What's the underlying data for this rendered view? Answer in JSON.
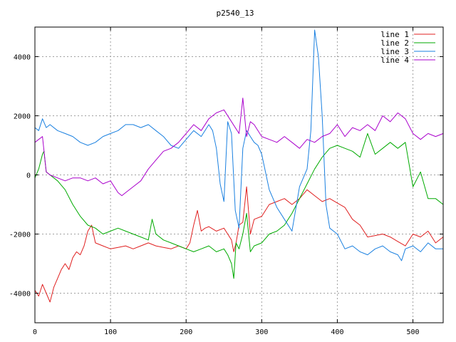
{
  "chart_data": {
    "type": "line",
    "title": "p2540_13",
    "xlabel": "",
    "ylabel": "",
    "xlim": [
      0,
      540
    ],
    "ylim": [
      -5000,
      5000
    ],
    "x_ticks": [
      0,
      100,
      200,
      300,
      400,
      500
    ],
    "y_ticks": [
      -4000,
      -2000,
      0,
      2000,
      4000
    ],
    "grid": true,
    "legend_position": "top-right",
    "series": [
      {
        "name": "line 1",
        "color": "#e02020",
        "x": [
          0,
          5,
          10,
          15,
          20,
          25,
          30,
          35,
          40,
          45,
          50,
          55,
          60,
          65,
          70,
          75,
          80,
          90,
          100,
          110,
          120,
          130,
          140,
          150,
          160,
          170,
          180,
          190,
          200,
          205,
          210,
          215,
          220,
          225,
          230,
          240,
          250,
          255,
          260,
          263,
          266,
          270,
          275,
          280,
          285,
          290,
          300,
          310,
          320,
          330,
          340,
          350,
          360,
          370,
          380,
          390,
          400,
          410,
          420,
          430,
          440,
          450,
          460,
          470,
          480,
          490,
          500,
          510,
          520,
          530,
          540
        ],
        "y": [
          -3900,
          -4100,
          -3700,
          -4000,
          -4300,
          -3800,
          -3500,
          -3200,
          -3000,
          -3200,
          -2800,
          -2600,
          -2700,
          -2400,
          -1900,
          -1700,
          -2300,
          -2400,
          -2500,
          -2450,
          -2400,
          -2500,
          -2400,
          -2300,
          -2400,
          -2450,
          -2500,
          -2400,
          -2500,
          -2300,
          -1700,
          -1200,
          -1900,
          -1800,
          -1750,
          -1900,
          -1800,
          -2000,
          -2200,
          -2600,
          -2300,
          -1700,
          -1600,
          -400,
          -2000,
          -1500,
          -1400,
          -1000,
          -900,
          -800,
          -1000,
          -800,
          -500,
          -700,
          -900,
          -800,
          -950,
          -1100,
          -1500,
          -1700,
          -2100,
          -2050,
          -2000,
          -2100,
          -2250,
          -2400,
          -2000,
          -2100,
          -1900,
          -2300,
          -2100
        ]
      },
      {
        "name": "line 2",
        "color": "#00aa00",
        "x": [
          0,
          5,
          10,
          12,
          15,
          20,
          30,
          40,
          50,
          60,
          70,
          80,
          90,
          100,
          110,
          120,
          130,
          140,
          150,
          155,
          160,
          170,
          180,
          190,
          200,
          210,
          220,
          230,
          240,
          250,
          255,
          260,
          263,
          266,
          270,
          275,
          280,
          285,
          290,
          300,
          310,
          320,
          330,
          340,
          350,
          360,
          370,
          380,
          390,
          400,
          410,
          420,
          430,
          440,
          450,
          460,
          470,
          480,
          490,
          500,
          510,
          520,
          530,
          540
        ],
        "y": [
          -100,
          200,
          700,
          800,
          100,
          0,
          -200,
          -500,
          -1000,
          -1400,
          -1700,
          -1800,
          -2000,
          -1900,
          -1800,
          -1900,
          -2000,
          -2100,
          -2200,
          -1500,
          -2000,
          -2200,
          -2300,
          -2400,
          -2500,
          -2600,
          -2500,
          -2400,
          -2600,
          -2500,
          -2700,
          -3000,
          -3500,
          -2300,
          -2500,
          -2000,
          -1300,
          -2600,
          -2400,
          -2300,
          -2000,
          -1900,
          -1700,
          -1300,
          -800,
          -300,
          200,
          600,
          900,
          1000,
          900,
          800,
          600,
          1400,
          700,
          900,
          1100,
          900,
          1100,
          -400,
          100,
          -800,
          -800,
          -1000
        ]
      },
      {
        "name": "line 3",
        "color": "#1a80e0",
        "x": [
          0,
          5,
          10,
          15,
          20,
          30,
          40,
          50,
          60,
          70,
          80,
          90,
          100,
          110,
          120,
          130,
          140,
          150,
          160,
          170,
          180,
          190,
          200,
          210,
          220,
          230,
          235,
          240,
          245,
          250,
          255,
          260,
          265,
          270,
          275,
          280,
          285,
          290,
          295,
          300,
          310,
          320,
          330,
          340,
          350,
          360,
          365,
          370,
          375,
          380,
          385,
          390,
          400,
          410,
          420,
          430,
          440,
          450,
          460,
          470,
          480,
          485,
          490,
          500,
          510,
          520,
          530,
          540
        ],
        "y": [
          1600,
          1500,
          1900,
          1600,
          1700,
          1500,
          1400,
          1300,
          1100,
          1000,
          1100,
          1300,
          1400,
          1500,
          1700,
          1700,
          1600,
          1700,
          1500,
          1300,
          1000,
          900,
          1200,
          1500,
          1300,
          1700,
          1500,
          900,
          -300,
          -900,
          1800,
          1400,
          -1200,
          -1800,
          900,
          1500,
          1300,
          1100,
          1000,
          700,
          -500,
          -1100,
          -1500,
          -1900,
          -400,
          200,
          1500,
          4900,
          4000,
          2000,
          -1000,
          -1800,
          -2000,
          -2500,
          -2400,
          -2600,
          -2700,
          -2500,
          -2400,
          -2600,
          -2700,
          -2900,
          -2500,
          -2400,
          -2600,
          -2300,
          -2500,
          -2500
        ]
      },
      {
        "name": "line 4",
        "color": "#aa00cc",
        "x": [
          0,
          5,
          10,
          15,
          20,
          30,
          40,
          50,
          60,
          70,
          80,
          90,
          100,
          110,
          115,
          120,
          130,
          140,
          150,
          160,
          170,
          180,
          190,
          200,
          210,
          220,
          230,
          240,
          250,
          260,
          270,
          275,
          280,
          285,
          290,
          300,
          310,
          320,
          330,
          340,
          350,
          360,
          370,
          380,
          390,
          400,
          410,
          420,
          430,
          440,
          450,
          460,
          470,
          480,
          490,
          500,
          510,
          520,
          530,
          540
        ],
        "y": [
          1100,
          1200,
          1300,
          100,
          0,
          -100,
          -200,
          -100,
          -100,
          -200,
          -100,
          -300,
          -200,
          -600,
          -700,
          -600,
          -400,
          -200,
          200,
          500,
          800,
          900,
          1100,
          1400,
          1700,
          1500,
          1900,
          2100,
          2200,
          1800,
          1400,
          2600,
          1300,
          1800,
          1700,
          1300,
          1200,
          1100,
          1300,
          1100,
          900,
          1200,
          1100,
          1300,
          1400,
          1700,
          1300,
          1600,
          1500,
          1700,
          1500,
          2000,
          1800,
          2100,
          1900,
          1400,
          1200,
          1400,
          1300,
          1400
        ]
      }
    ]
  }
}
